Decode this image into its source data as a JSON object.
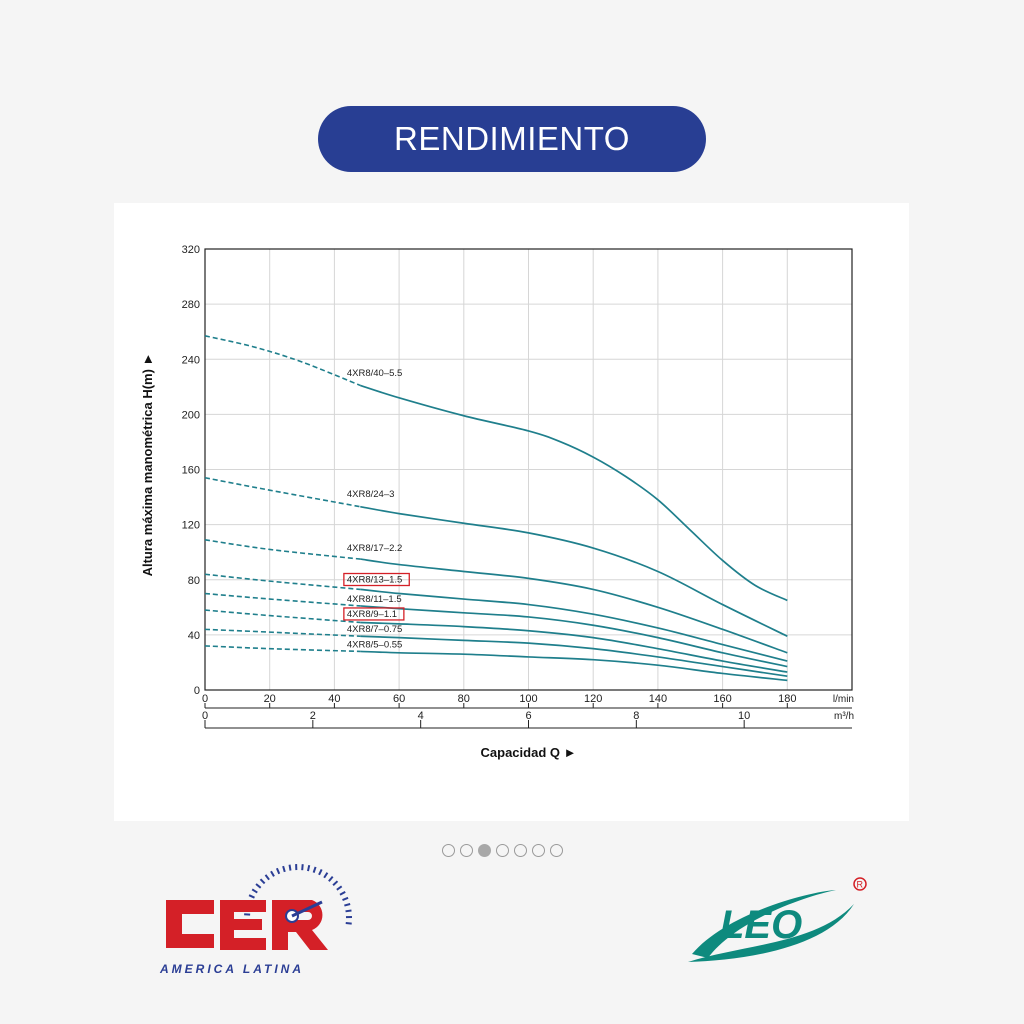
{
  "header": {
    "title": "RENDIMIENTO"
  },
  "carousel": {
    "count": 7,
    "active": 2
  },
  "logos": {
    "left": {
      "name": "CER",
      "subtitle": "AMERICA LATINA",
      "color": "#d42027",
      "accent": "#2b3e95"
    },
    "right": {
      "name": "LEO",
      "registered": "®",
      "color": "#0e8a7e"
    }
  },
  "chart_data": {
    "type": "line",
    "xlabel": "Capacidad Q ►",
    "ylabel": "Altura máxima manométrica H(m) ►",
    "xunit": "l/min",
    "x2unit": "m³/h",
    "xlim": [
      0,
      200
    ],
    "ylim": [
      0,
      320
    ],
    "xticks": [
      0,
      20,
      40,
      60,
      80,
      100,
      120,
      140,
      160,
      180
    ],
    "x2ticks": [
      0,
      2,
      4,
      6,
      8,
      10
    ],
    "yticks": [
      0,
      40,
      80,
      120,
      160,
      200,
      240,
      280,
      320
    ],
    "grid": true,
    "line_color": "#1f7f8c",
    "highlight_color": "#d42027",
    "series": [
      {
        "name": "4XR8/40–5.5",
        "dashed": [
          [
            0,
            257
          ],
          [
            15,
            249
          ],
          [
            30,
            238
          ],
          [
            48,
            221
          ]
        ],
        "solid": [
          [
            48,
            221
          ],
          [
            60,
            212
          ],
          [
            80,
            199
          ],
          [
            100,
            188
          ],
          [
            110,
            180
          ],
          [
            120,
            169
          ],
          [
            130,
            155
          ],
          [
            140,
            138
          ],
          [
            150,
            116
          ],
          [
            160,
            94
          ],
          [
            170,
            76
          ],
          [
            180,
            65
          ]
        ]
      },
      {
        "name": "4XR8/24–3",
        "dashed": [
          [
            0,
            154
          ],
          [
            20,
            145
          ],
          [
            48,
            133
          ]
        ],
        "solid": [
          [
            48,
            133
          ],
          [
            60,
            128
          ],
          [
            80,
            121
          ],
          [
            100,
            114
          ],
          [
            120,
            103
          ],
          [
            140,
            86
          ],
          [
            160,
            62
          ],
          [
            180,
            39
          ]
        ]
      },
      {
        "name": "4XR8/17–2.2",
        "dashed": [
          [
            0,
            109
          ],
          [
            20,
            102
          ],
          [
            48,
            95
          ]
        ],
        "solid": [
          [
            48,
            95
          ],
          [
            60,
            91
          ],
          [
            80,
            86
          ],
          [
            100,
            81
          ],
          [
            120,
            73
          ],
          [
            140,
            60
          ],
          [
            160,
            44
          ],
          [
            180,
            27
          ]
        ]
      },
      {
        "name": "4XR8/13–1.5",
        "highlight": true,
        "dashed": [
          [
            0,
            84
          ],
          [
            20,
            79
          ],
          [
            48,
            73
          ]
        ],
        "solid": [
          [
            48,
            73
          ],
          [
            60,
            70
          ],
          [
            80,
            66
          ],
          [
            100,
            62
          ],
          [
            120,
            55
          ],
          [
            140,
            45
          ],
          [
            160,
            33
          ],
          [
            180,
            21
          ]
        ]
      },
      {
        "name": "4XR8/11–1.5",
        "dashed": [
          [
            0,
            70
          ],
          [
            20,
            66
          ],
          [
            48,
            61
          ]
        ],
        "solid": [
          [
            48,
            61
          ],
          [
            60,
            59
          ],
          [
            80,
            56
          ],
          [
            100,
            53
          ],
          [
            120,
            47
          ],
          [
            140,
            38
          ],
          [
            160,
            27
          ],
          [
            180,
            17
          ]
        ]
      },
      {
        "name": "4XR8/9–1.1",
        "highlight": true,
        "dashed": [
          [
            0,
            58
          ],
          [
            20,
            54
          ],
          [
            48,
            49
          ]
        ],
        "solid": [
          [
            48,
            49
          ],
          [
            60,
            48
          ],
          [
            80,
            46
          ],
          [
            100,
            43
          ],
          [
            120,
            38
          ],
          [
            140,
            30
          ],
          [
            160,
            21
          ],
          [
            180,
            13
          ]
        ]
      },
      {
        "name": "4XR8/7–0.75",
        "dashed": [
          [
            0,
            44
          ],
          [
            20,
            42
          ],
          [
            48,
            39
          ]
        ],
        "solid": [
          [
            48,
            39
          ],
          [
            60,
            38
          ],
          [
            80,
            36
          ],
          [
            100,
            34
          ],
          [
            120,
            30
          ],
          [
            140,
            24
          ],
          [
            160,
            17
          ],
          [
            180,
            10
          ]
        ]
      },
      {
        "name": "4XR8/5–0.55",
        "dashed": [
          [
            0,
            32
          ],
          [
            20,
            30
          ],
          [
            48,
            28
          ]
        ],
        "solid": [
          [
            48,
            28
          ],
          [
            60,
            27
          ],
          [
            80,
            26
          ],
          [
            100,
            24
          ],
          [
            120,
            22
          ],
          [
            140,
            18
          ],
          [
            160,
            12
          ],
          [
            180,
            7
          ]
        ]
      }
    ],
    "labels": [
      {
        "text": "4XR8/40–5.5",
        "at": [
          42,
          228
        ]
      },
      {
        "text": "4XR8/24–3",
        "at": [
          42,
          140
        ]
      },
      {
        "text": "4XR8/17–2.2",
        "at": [
          42,
          101
        ]
      },
      {
        "text": "4XR8/13–1.5",
        "at": [
          42,
          78
        ],
        "highlight": true
      },
      {
        "text": "4XR8/11–1.5",
        "at": [
          42,
          64
        ]
      },
      {
        "text": "4XR8/9–1.1",
        "at": [
          42,
          53
        ],
        "highlight": true
      },
      {
        "text": "4XR8/7–0.75",
        "at": [
          42,
          42
        ]
      },
      {
        "text": "4XR8/5–0.55",
        "at": [
          42,
          31
        ]
      }
    ]
  }
}
